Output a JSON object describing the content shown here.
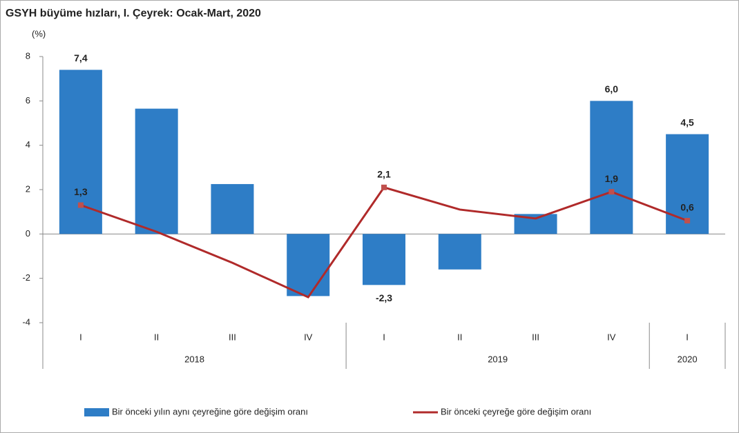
{
  "chart_data": {
    "type": "bar-line",
    "title": "GSYH büyüme hızları, I. Çeyrek: Ocak-Mart, 2020",
    "y_unit": "(%)",
    "categories": [
      "I",
      "II",
      "III",
      "IV",
      "I",
      "II",
      "III",
      "IV",
      "I"
    ],
    "category_groups": [
      "2018",
      "2018",
      "2018",
      "2018",
      "2019",
      "2019",
      "2019",
      "2019",
      "2020"
    ],
    "series": [
      {
        "name": "Bir önceki yılın aynı çeyreğine göre değişim oranı",
        "type": "bar",
        "color": "#2e7dc6",
        "values": [
          7.4,
          5.65,
          2.25,
          -2.8,
          -2.3,
          -1.6,
          0.9,
          6.0,
          4.5
        ],
        "value_labels": [
          "7,4",
          null,
          null,
          null,
          "-2,3",
          null,
          null,
          "6,0",
          "4,5"
        ]
      },
      {
        "name": "Bir önceki çeyreğe göre değişim oranı",
        "type": "line",
        "color": "#b02a2a",
        "marker_color": "#c0504d",
        "values": [
          1.3,
          0.1,
          -1.3,
          -2.85,
          2.1,
          1.1,
          0.7,
          1.9,
          0.6
        ],
        "value_labels": [
          "1,3",
          null,
          null,
          null,
          "2,1",
          null,
          null,
          "1,9",
          "0,6"
        ]
      }
    ],
    "ylim": [
      -4,
      8
    ],
    "yticks": [
      -4,
      -2,
      0,
      2,
      4,
      6,
      8
    ]
  }
}
